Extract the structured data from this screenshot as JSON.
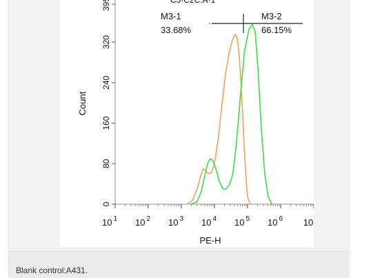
{
  "chart_data": {
    "type": "line",
    "title": "",
    "xlabel": "PE-H",
    "ylabel": "Count",
    "xscale": "log",
    "xlim": [
      10,
      10000000
    ],
    "ylim": [
      0,
      395
    ],
    "y_ticks": [
      "0",
      "80",
      "160",
      "240",
      "320",
      "395"
    ],
    "x_ticks": [
      {
        "base": "10",
        "exp": "1"
      },
      {
        "base": "10",
        "exp": "2"
      },
      {
        "base": "10",
        "exp": "3"
      },
      {
        "base": "10",
        "exp": "4"
      },
      {
        "base": "10",
        "exp": "5"
      },
      {
        "base": "10",
        "exp": "6"
      },
      {
        "base": "10",
        "exp": ""
      }
    ],
    "grid": false,
    "series": [
      {
        "color": "#f0a061",
        "points": [
          [
            1500,
            0
          ],
          [
            2200,
            8
          ],
          [
            3000,
            30
          ],
          [
            3800,
            55
          ],
          [
            4600,
            70
          ],
          [
            5500,
            66
          ],
          [
            6500,
            60
          ],
          [
            8000,
            62
          ],
          [
            10000,
            80
          ],
          [
            13000,
            130
          ],
          [
            17000,
            200
          ],
          [
            22000,
            260
          ],
          [
            28000,
            300
          ],
          [
            35000,
            325
          ],
          [
            42000,
            335
          ],
          [
            48000,
            330
          ],
          [
            55000,
            300
          ],
          [
            62000,
            250
          ],
          [
            70000,
            185
          ],
          [
            80000,
            110
          ],
          [
            90000,
            50
          ],
          [
            100000,
            15
          ],
          [
            120000,
            0
          ]
        ]
      },
      {
        "color": "#3ed94a",
        "points": [
          [
            2000,
            0
          ],
          [
            3000,
            5
          ],
          [
            4000,
            25
          ],
          [
            5000,
            55
          ],
          [
            6200,
            80
          ],
          [
            7500,
            90
          ],
          [
            9000,
            86
          ],
          [
            11000,
            70
          ],
          [
            14000,
            45
          ],
          [
            18000,
            30
          ],
          [
            22000,
            30
          ],
          [
            28000,
            38
          ],
          [
            36000,
            60
          ],
          [
            46000,
            120
          ],
          [
            60000,
            210
          ],
          [
            80000,
            300
          ],
          [
            110000,
            345
          ],
          [
            140000,
            355
          ],
          [
            170000,
            340
          ],
          [
            210000,
            260
          ],
          [
            260000,
            150
          ],
          [
            330000,
            60
          ],
          [
            420000,
            15
          ],
          [
            550000,
            0
          ]
        ]
      }
    ],
    "gates": [
      {
        "label": "M3-1",
        "value": "33.68%"
      },
      {
        "label": "M3-2",
        "value": "66.15%"
      }
    ]
  },
  "caption": "Blank control:A431."
}
